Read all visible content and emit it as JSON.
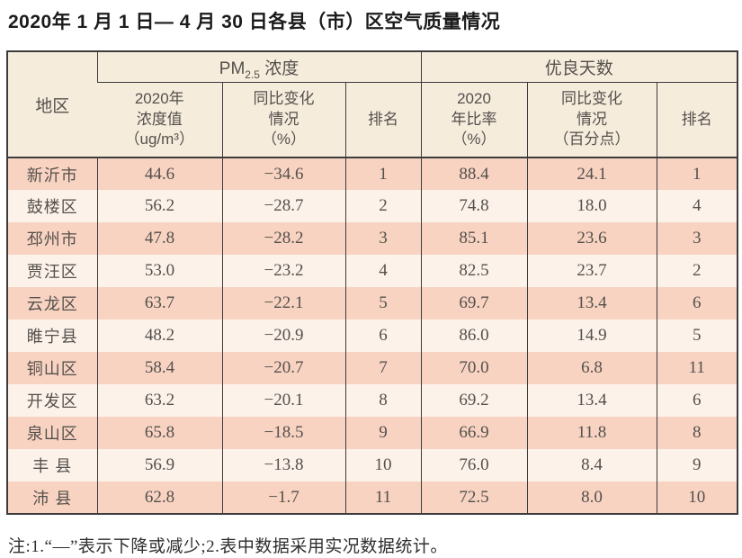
{
  "title": "2020年 1 月 1 日— 4 月 30 日各县（市）区空气质量情况",
  "note": "注:1.“—”表示下降或减少;2.表中数据采用实况数据统计。",
  "colors": {
    "header_bg": "#f6ecdc",
    "row_odd": "#f8d3c1",
    "row_even": "#fdf2ea",
    "border": "#3c3c3c",
    "body_text": "#54504c",
    "title_text": "#1b1b1b"
  },
  "table": {
    "region_header": "地区",
    "group_pm": {
      "prefix": "PM",
      "sub": "2.5",
      "suffix": " 浓度"
    },
    "group_good": "优良天数",
    "subheaders": {
      "pm_value": "2020年\n浓度值\n（ug/m³）",
      "pm_change": "同比变化\n情况\n（%）",
      "pm_rank": "排名",
      "good_ratio": "2020\n年比率\n（%）",
      "good_change": "同比变化\n情况\n（百分点）",
      "good_rank": "排名"
    },
    "rows": [
      {
        "region": "新沂市",
        "pm_value": "44.6",
        "pm_change": "−34.6",
        "pm_rank": "1",
        "good_ratio": "88.4",
        "good_change": "24.1",
        "good_rank": "1"
      },
      {
        "region": "鼓楼区",
        "pm_value": "56.2",
        "pm_change": "−28.7",
        "pm_rank": "2",
        "good_ratio": "74.8",
        "good_change": "18.0",
        "good_rank": "4"
      },
      {
        "region": "邳州市",
        "pm_value": "47.8",
        "pm_change": "−28.2",
        "pm_rank": "3",
        "good_ratio": "85.1",
        "good_change": "23.6",
        "good_rank": "3"
      },
      {
        "region": "贾汪区",
        "pm_value": "53.0",
        "pm_change": "−23.2",
        "pm_rank": "4",
        "good_ratio": "82.5",
        "good_change": "23.7",
        "good_rank": "2"
      },
      {
        "region": "云龙区",
        "pm_value": "63.7",
        "pm_change": "−22.1",
        "pm_rank": "5",
        "good_ratio": "69.7",
        "good_change": "13.4",
        "good_rank": "6"
      },
      {
        "region": "睢宁县",
        "pm_value": "48.2",
        "pm_change": "−20.9",
        "pm_rank": "6",
        "good_ratio": "86.0",
        "good_change": "14.9",
        "good_rank": "5"
      },
      {
        "region": "铜山区",
        "pm_value": "58.4",
        "pm_change": "−20.7",
        "pm_rank": "7",
        "good_ratio": "70.0",
        "good_change": "6.8",
        "good_rank": "11"
      },
      {
        "region": "开发区",
        "pm_value": "63.2",
        "pm_change": "−20.1",
        "pm_rank": "8",
        "good_ratio": "69.2",
        "good_change": "13.4",
        "good_rank": "6"
      },
      {
        "region": "泉山区",
        "pm_value": "65.8",
        "pm_change": "−18.5",
        "pm_rank": "9",
        "good_ratio": "66.9",
        "good_change": "11.8",
        "good_rank": "8"
      },
      {
        "region": "丰 县",
        "pm_value": "56.9",
        "pm_change": "−13.8",
        "pm_rank": "10",
        "good_ratio": "76.0",
        "good_change": "8.4",
        "good_rank": "9"
      },
      {
        "region": "沛 县",
        "pm_value": "62.8",
        "pm_change": "−1.7",
        "pm_rank": "11",
        "good_ratio": "72.5",
        "good_change": "8.0",
        "good_rank": "10"
      }
    ]
  }
}
